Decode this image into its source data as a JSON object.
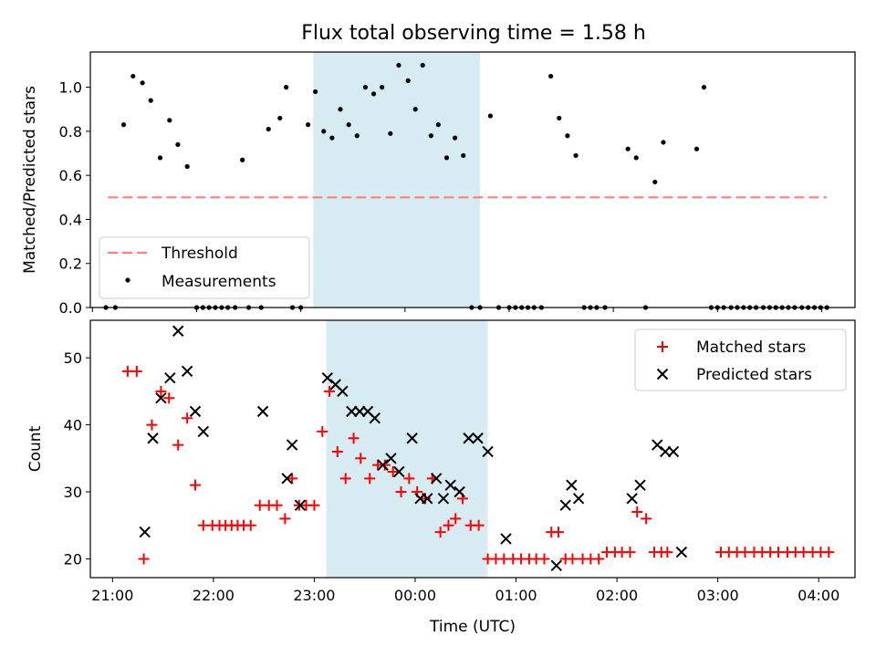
{
  "title": "Flux total observing time = 1.58 h",
  "chart_data": [
    {
      "type": "scatter",
      "panel": "top",
      "ylabel": "Matched/Predicted stars",
      "ylim": [
        0,
        1.16
      ],
      "yticks": [
        0.0,
        0.2,
        0.4,
        0.6,
        0.8,
        1.0
      ],
      "yticklabels": [
        "0.0",
        "0.2",
        "0.4",
        "0.6",
        "0.8",
        "1.0"
      ],
      "xlim": [
        20.98,
        28.32
      ],
      "shaded_span": [
        23.12,
        24.72
      ],
      "threshold": {
        "value": 0.5,
        "x_range": [
          21.15,
          28.05
        ],
        "color": "#ff7f7f"
      },
      "legend_position": "lower left",
      "legend": [
        {
          "label": "Threshold",
          "marker": "dashed-line",
          "color": "#ff7f7f"
        },
        {
          "label": "Measurements",
          "marker": "dot",
          "color": "#000000"
        }
      ],
      "series": [
        {
          "name": "Measurements",
          "color": "#000000",
          "x": [
            21.13,
            21.22,
            21.3,
            21.39,
            21.48,
            21.56,
            21.65,
            21.74,
            21.82,
            21.91,
            22.0,
            22.06,
            22.12,
            22.18,
            22.24,
            22.3,
            22.37,
            22.44,
            22.5,
            22.62,
            22.69,
            22.8,
            22.86,
            22.92,
            23.0,
            23.07,
            23.14,
            23.22,
            23.3,
            23.38,
            23.46,
            23.54,
            23.62,
            23.7,
            23.78,
            23.86,
            23.94,
            24.03,
            24.1,
            24.17,
            24.25,
            24.32,
            24.4,
            24.48,
            24.56,
            24.64,
            24.72,
            24.82,
            24.9,
            25.0,
            25.06,
            25.12,
            25.18,
            25.24,
            25.31,
            25.4,
            25.48,
            25.56,
            25.64,
            25.72,
            25.78,
            25.84,
            25.92,
            26.14,
            26.22,
            26.31,
            26.4,
            26.48,
            26.8,
            26.87,
            26.94,
            27.0,
            27.06,
            27.13,
            27.19,
            27.25,
            27.31,
            27.37,
            27.44,
            27.5,
            27.56,
            27.62,
            27.68,
            27.74,
            27.81,
            27.87,
            27.93,
            27.99,
            28.05
          ],
          "y": [
            0.0,
            0.0,
            0.83,
            1.05,
            1.02,
            0.94,
            0.68,
            0.85,
            0.74,
            0.64,
            0.0,
            0.0,
            0.0,
            0.0,
            0.0,
            0.0,
            0.0,
            0.67,
            0.0,
            0.0,
            0.81,
            0.86,
            1.0,
            0.0,
            0.0,
            0.83,
            0.98,
            0.8,
            0.77,
            0.9,
            0.83,
            0.78,
            1.0,
            0.97,
            1.0,
            0.79,
            1.1,
            1.03,
            0.9,
            1.1,
            0.78,
            0.83,
            0.68,
            0.77,
            0.69,
            0.0,
            0.0,
            0.87,
            0.0,
            0.0,
            0.0,
            0.0,
            0.0,
            0.0,
            0.0,
            1.05,
            0.86,
            0.78,
            0.69,
            0.0,
            0.0,
            0.0,
            0.0,
            0.72,
            0.68,
            0.0,
            0.57,
            0.75,
            0.72,
            1.0,
            0.0,
            0.0,
            0.0,
            0.0,
            0.0,
            0.0,
            0.0,
            0.0,
            0.0,
            0.0,
            0.0,
            0.0,
            0.0,
            0.0,
            0.0,
            0.0,
            0.0,
            0.0,
            0.0
          ]
        }
      ]
    },
    {
      "type": "scatter",
      "panel": "bottom",
      "xlabel": "Time (UTC)",
      "ylabel": "Count",
      "ylim": [
        17.2,
        55.6
      ],
      "yticks": [
        20,
        30,
        40,
        50
      ],
      "yticklabels": [
        "20",
        "30",
        "40",
        "50"
      ],
      "xlim": [
        20.78,
        28.36
      ],
      "xticks": [
        21,
        22,
        23,
        24,
        25,
        26,
        27,
        28
      ],
      "xticklabels": [
        "21:00",
        "22:00",
        "23:00",
        "00:00",
        "01:00",
        "02:00",
        "03:00",
        "04:00"
      ],
      "shaded_span": [
        23.12,
        24.72
      ],
      "legend_position": "upper right",
      "legend": [
        {
          "label": "Matched stars",
          "marker": "plus",
          "color": "#ff0000"
        },
        {
          "label": "Predicted stars",
          "marker": "x",
          "color": "#000000"
        }
      ],
      "series": [
        {
          "name": "Matched stars",
          "marker": "plus",
          "color": "#ff0000",
          "x": [
            21.15,
            21.24,
            21.31,
            21.39,
            21.48,
            21.56,
            21.65,
            21.74,
            21.82,
            21.9,
            21.99,
            22.06,
            22.12,
            22.18,
            22.24,
            22.3,
            22.37,
            22.46,
            22.55,
            22.63,
            22.71,
            22.78,
            22.85,
            22.92,
            23.0,
            23.08,
            23.15,
            23.23,
            23.31,
            23.39,
            23.46,
            23.55,
            23.63,
            23.7,
            23.78,
            23.86,
            23.94,
            24.02,
            24.1,
            24.17,
            24.25,
            24.33,
            24.4,
            24.47,
            24.55,
            24.63,
            24.72,
            24.8,
            24.88,
            24.97,
            25.05,
            25.13,
            25.2,
            25.28,
            25.35,
            25.42,
            25.49,
            25.56,
            25.66,
            25.74,
            25.82,
            25.9,
            25.98,
            26.05,
            26.13,
            26.2,
            26.29,
            26.37,
            26.44,
            26.5,
            27.03,
            27.11,
            27.19,
            27.27,
            27.36,
            27.44,
            27.52,
            27.6,
            27.69,
            27.77,
            27.85,
            27.94,
            28.02,
            28.1
          ],
          "y": [
            48,
            48,
            20,
            40,
            45,
            44,
            37,
            41,
            31,
            25,
            25,
            25,
            25,
            25,
            25,
            25,
            25,
            28,
            28,
            28,
            26,
            32,
            28,
            28,
            28,
            39,
            45,
            36,
            32,
            38,
            35,
            32,
            34,
            34,
            33,
            30,
            32,
            30,
            29,
            32,
            24,
            25,
            26,
            29,
            25,
            25,
            20,
            20,
            20,
            20,
            20,
            20,
            20,
            20,
            24,
            24,
            20,
            20,
            20,
            20,
            20,
            21,
            21,
            21,
            21,
            27,
            26,
            21,
            21,
            21,
            21,
            21,
            21,
            21,
            21,
            21,
            21,
            21,
            21,
            21,
            21,
            21,
            21,
            21
          ]
        },
        {
          "name": "Predicted stars",
          "marker": "x",
          "color": "#000000",
          "x": [
            21.32,
            21.4,
            21.48,
            21.57,
            21.65,
            21.74,
            21.82,
            21.9,
            22.49,
            22.73,
            22.78,
            22.86,
            23.13,
            23.21,
            23.28,
            23.37,
            23.45,
            23.53,
            23.6,
            23.68,
            23.76,
            23.84,
            23.97,
            24.05,
            24.12,
            24.21,
            24.28,
            24.35,
            24.44,
            24.53,
            24.62,
            24.72,
            24.9,
            25.4,
            25.49,
            25.55,
            25.62,
            26.15,
            26.23,
            26.4,
            26.48,
            26.56,
            26.64
          ],
          "y": [
            24,
            38,
            44,
            47,
            54,
            48,
            42,
            39,
            42,
            32,
            37,
            28,
            47,
            46,
            45,
            42,
            42,
            42,
            41,
            34,
            35,
            33,
            38,
            29,
            29,
            32,
            29,
            31,
            30,
            38,
            38,
            36,
            23,
            19,
            28,
            31,
            29,
            29,
            31,
            37,
            36,
            36,
            21
          ]
        }
      ]
    }
  ]
}
